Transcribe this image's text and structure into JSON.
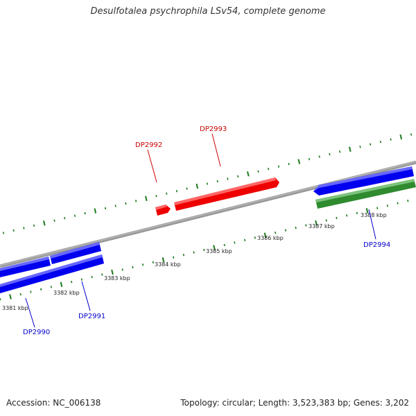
{
  "title": "Desulfotalea psychrophila LSv54, complete genome",
  "footer": {
    "accession": "Accession: NC_006138",
    "summary": "Topology: circular; Length: 3,523,383 bp; Genes: 3,202"
  },
  "colors": {
    "forward_gene": "#ee0000",
    "reverse_gene": "#0000ee",
    "rna_gene": "#2e8b2e",
    "backbone": "#888888",
    "ticks": "#1a7a1a",
    "forward_label": "#cc0000",
    "reverse_label": "#0000cc"
  },
  "ticks": [
    {
      "label": "3381 kbp"
    },
    {
      "label": "3382 kbp"
    },
    {
      "label": "3383 kbp"
    },
    {
      "label": "3384 kbp"
    },
    {
      "label": "3385 kbp"
    },
    {
      "label": "3386 kbp"
    },
    {
      "label": "3387 kbp"
    },
    {
      "label": "3388 kbp"
    }
  ],
  "genes": [
    {
      "name": "DP2990",
      "strand": "reverse"
    },
    {
      "name": "DP2991",
      "strand": "reverse"
    },
    {
      "name": "DP2992",
      "strand": "forward"
    },
    {
      "name": "DP2993",
      "strand": "forward"
    },
    {
      "name": "DP2994",
      "strand": "reverse"
    }
  ]
}
